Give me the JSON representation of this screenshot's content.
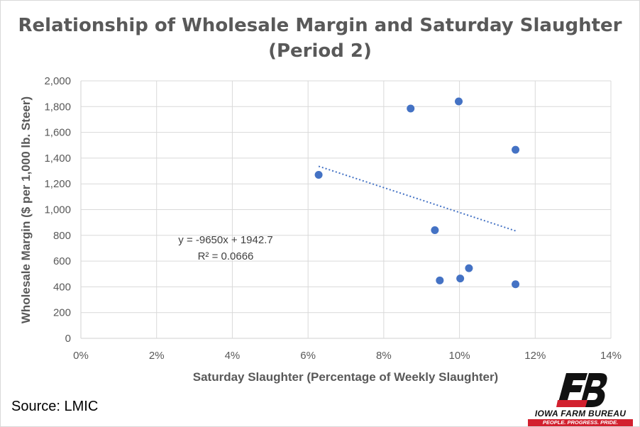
{
  "chart_data": {
    "type": "scatter",
    "title_line1": "Relationship of Wholesale Margin and Saturday Slaughter",
    "title_line2": "(Period 2)",
    "xlabel": "Saturday Slaughter (Percentage of Weekly Slaughter)",
    "ylabel": "Wholesale Margin ($ per 1,000 lb. Steer)",
    "xlim": [
      0,
      0.14
    ],
    "ylim": [
      0,
      2000
    ],
    "x_ticks": [
      0,
      0.02,
      0.04,
      0.06,
      0.08,
      0.1,
      0.12,
      0.14
    ],
    "x_tick_labels": [
      "0%",
      "2%",
      "4%",
      "6%",
      "8%",
      "10%",
      "12%",
      "14%"
    ],
    "y_ticks": [
      0,
      200,
      400,
      600,
      800,
      1000,
      1200,
      1400,
      1600,
      1800,
      2000
    ],
    "y_tick_labels": [
      "0",
      "200",
      "400",
      "600",
      "800",
      "1,000",
      "1,200",
      "1,400",
      "1,600",
      "1,800",
      "2,000"
    ],
    "grid": true,
    "points": [
      {
        "x": 0.0628,
        "y": 1270
      },
      {
        "x": 0.0871,
        "y": 1785
      },
      {
        "x": 0.0998,
        "y": 1840
      },
      {
        "x": 0.1148,
        "y": 1465
      },
      {
        "x": 0.0935,
        "y": 840
      },
      {
        "x": 0.0948,
        "y": 450
      },
      {
        "x": 0.1002,
        "y": 465
      },
      {
        "x": 0.1025,
        "y": 545
      },
      {
        "x": 0.1148,
        "y": 420
      }
    ],
    "trendline": {
      "type": "linear",
      "slope": -9650,
      "intercept": 1942.7,
      "x_range": [
        0.0628,
        0.1148
      ],
      "equation_label": "y = -9650x + 1942.7",
      "r2_label": "R² = 0.0666"
    },
    "colors": {
      "marker": "#4472c4",
      "trendline": "#4472c4",
      "grid": "#d9d9d9",
      "text": "#595959"
    }
  },
  "source_text": "Source: LMIC",
  "logo": {
    "name": "IOWA FARM BUREAU",
    "tagline": "PEOPLE. PROGRESS. PRIDE.",
    "mark_color": "#111111",
    "accent_color": "#d2202e"
  }
}
